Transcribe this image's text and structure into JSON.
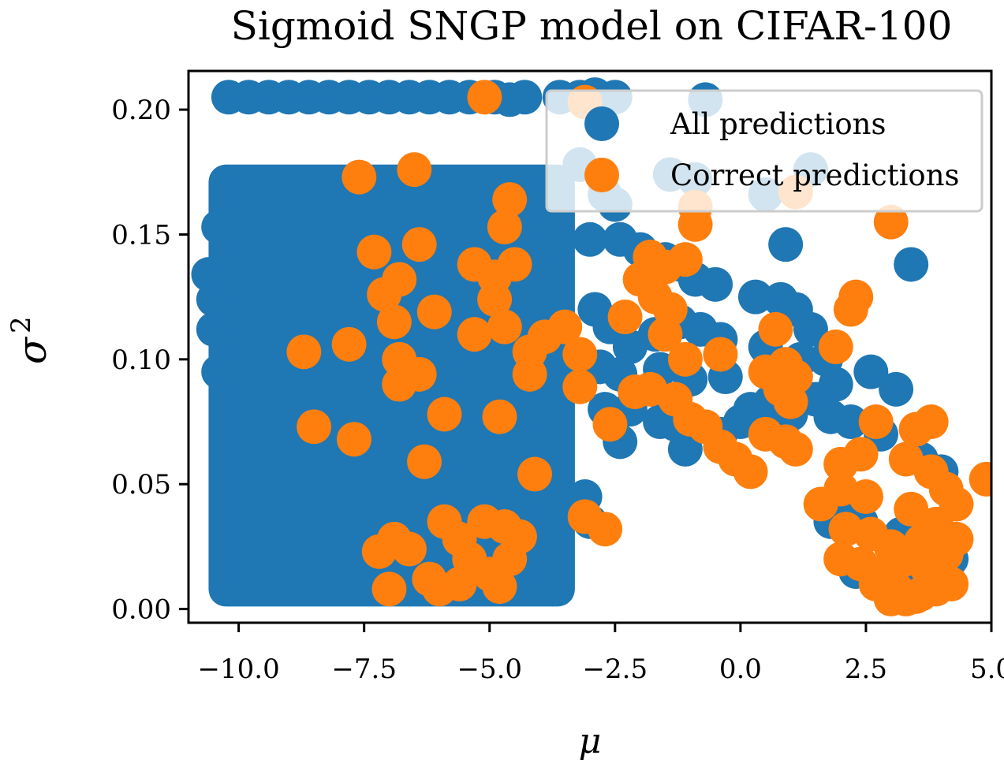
{
  "chart_data": {
    "type": "scatter",
    "title": "Sigmoid SNGP model on CIFAR-100",
    "xlabel": "μ",
    "ylabel": "σ",
    "ylabel_superscript": "2",
    "xlim": [
      -11.0,
      5.0
    ],
    "ylim": [
      -0.0055,
      0.2155
    ],
    "x_ticks": [
      -10.0,
      -7.5,
      -5.0,
      -2.5,
      0.0,
      2.5,
      5.0
    ],
    "x_tick_labels": [
      "−10.0",
      "−7.5",
      "−5.0",
      "−2.5",
      "0.0",
      "2.5",
      "5.0"
    ],
    "y_ticks": [
      0.0,
      0.05,
      0.1,
      0.15,
      0.2
    ],
    "y_tick_labels": [
      "0.00",
      "0.05",
      "0.10",
      "0.15",
      "0.20"
    ],
    "grid": false,
    "legend_position": "top-right",
    "colors": {
      "all": "#1f77b4",
      "correct": "#ff7f0e"
    },
    "series": [
      {
        "name": "All predictions",
        "dense_region": {
          "x_range": [
            -10.6,
            -3.3
          ],
          "y_range": [
            0.001,
            0.178
          ]
        },
        "points": [
          [
            -10.2,
            0.205
          ],
          [
            -9.8,
            0.205
          ],
          [
            -9.4,
            0.205
          ],
          [
            -9.0,
            0.205
          ],
          [
            -8.6,
            0.205
          ],
          [
            -8.2,
            0.205
          ],
          [
            -7.8,
            0.205
          ],
          [
            -7.4,
            0.205
          ],
          [
            -7.0,
            0.205
          ],
          [
            -6.6,
            0.205
          ],
          [
            -6.2,
            0.205
          ],
          [
            -5.8,
            0.205
          ],
          [
            -5.4,
            0.205
          ],
          [
            -4.9,
            0.205
          ],
          [
            -4.6,
            0.204
          ],
          [
            -4.3,
            0.205
          ],
          [
            -3.6,
            0.205
          ],
          [
            -3.2,
            0.205
          ],
          [
            -2.9,
            0.206
          ],
          [
            -2.5,
            0.205
          ],
          [
            -0.7,
            0.204
          ],
          [
            -10.6,
            0.134
          ],
          [
            -10.5,
            0.124
          ],
          [
            -10.4,
            0.153
          ],
          [
            -10.5,
            0.112
          ],
          [
            -10.4,
            0.095
          ],
          [
            -3.2,
            0.178
          ],
          [
            -2.7,
            0.166
          ],
          [
            -2.5,
            0.162
          ],
          [
            -3.0,
            0.148
          ],
          [
            -2.4,
            0.148
          ],
          [
            -2.0,
            0.144
          ],
          [
            -1.5,
            0.14
          ],
          [
            -1.2,
            0.138
          ],
          [
            -0.9,
            0.132
          ],
          [
            -0.5,
            0.13
          ],
          [
            -2.9,
            0.12
          ],
          [
            -2.6,
            0.113
          ],
          [
            -2.2,
            0.105
          ],
          [
            -1.7,
            0.11
          ],
          [
            -1.2,
            0.115
          ],
          [
            -0.8,
            0.112
          ],
          [
            -0.4,
            0.108
          ],
          [
            -2.8,
            0.097
          ],
          [
            -2.4,
            0.094
          ],
          [
            -1.6,
            0.096
          ],
          [
            -1.0,
            0.092
          ],
          [
            -0.3,
            0.093
          ],
          [
            -2.7,
            0.08
          ],
          [
            -2.2,
            0.08
          ],
          [
            -1.6,
            0.075
          ],
          [
            -1.3,
            0.074
          ],
          [
            -2.4,
            0.067
          ],
          [
            -0.4,
            0.07
          ],
          [
            0.0,
            0.075
          ],
          [
            -3.1,
            0.045
          ],
          [
            -3.0,
            0.035
          ],
          [
            -1.4,
            0.174
          ],
          [
            -0.9,
            0.172
          ],
          [
            0.5,
            0.166
          ],
          [
            1.4,
            0.176
          ],
          [
            0.9,
            0.146
          ],
          [
            3.4,
            0.138
          ],
          [
            0.3,
            0.125
          ],
          [
            0.8,
            0.124
          ],
          [
            1.1,
            0.12
          ],
          [
            1.4,
            0.112
          ],
          [
            0.5,
            0.105
          ],
          [
            1.2,
            0.1
          ],
          [
            1.7,
            0.1
          ],
          [
            0.6,
            0.083
          ],
          [
            1.5,
            0.084
          ],
          [
            1.9,
            0.09
          ],
          [
            2.6,
            0.095
          ],
          [
            3.1,
            0.088
          ],
          [
            0.2,
            0.08
          ],
          [
            1.0,
            0.078
          ],
          [
            1.8,
            0.077
          ],
          [
            2.2,
            0.075
          ],
          [
            2.8,
            0.07
          ],
          [
            3.6,
            0.06
          ],
          [
            4.0,
            0.055
          ],
          [
            1.9,
            0.04
          ],
          [
            2.4,
            0.035
          ],
          [
            3.2,
            0.03
          ],
          [
            1.8,
            0.035
          ],
          [
            4.2,
            0.02
          ],
          [
            2.3,
            0.015
          ],
          [
            3.5,
            0.01
          ],
          [
            -1.1,
            0.064
          ]
        ]
      },
      {
        "name": "Correct predictions",
        "points": [
          [
            -5.1,
            0.205
          ],
          [
            -3.1,
            0.203
          ],
          [
            -6.5,
            0.176
          ],
          [
            -7.6,
            0.173
          ],
          [
            -4.6,
            0.164
          ],
          [
            -4.7,
            0.153
          ],
          [
            -6.4,
            0.146
          ],
          [
            -7.3,
            0.143
          ],
          [
            -5.3,
            0.138
          ],
          [
            -4.9,
            0.133
          ],
          [
            -4.5,
            0.138
          ],
          [
            -6.8,
            0.132
          ],
          [
            -7.1,
            0.126
          ],
          [
            -4.9,
            0.124
          ],
          [
            -6.9,
            0.115
          ],
          [
            -6.1,
            0.119
          ],
          [
            -5.3,
            0.11
          ],
          [
            -4.7,
            0.113
          ],
          [
            -8.7,
            0.103
          ],
          [
            -7.8,
            0.106
          ],
          [
            -6.8,
            0.1
          ],
          [
            -6.4,
            0.094
          ],
          [
            -6.8,
            0.09
          ],
          [
            -4.2,
            0.103
          ],
          [
            -3.9,
            0.109
          ],
          [
            -3.5,
            0.113
          ],
          [
            -3.2,
            0.102
          ],
          [
            -4.2,
            0.094
          ],
          [
            -3.2,
            0.089
          ],
          [
            -8.5,
            0.073
          ],
          [
            -7.7,
            0.068
          ],
          [
            -5.9,
            0.078
          ],
          [
            -4.8,
            0.077
          ],
          [
            -6.3,
            0.059
          ],
          [
            -4.1,
            0.054
          ],
          [
            -2.6,
            0.074
          ],
          [
            -5.9,
            0.035
          ],
          [
            -5.1,
            0.035
          ],
          [
            -4.7,
            0.033
          ],
          [
            -4.4,
            0.029
          ],
          [
            -6.9,
            0.028
          ],
          [
            -5.6,
            0.028
          ],
          [
            -7.2,
            0.023
          ],
          [
            -6.6,
            0.024
          ],
          [
            -5.4,
            0.02
          ],
          [
            -4.6,
            0.02
          ],
          [
            -6.2,
            0.012
          ],
          [
            -5.6,
            0.01
          ],
          [
            -5.0,
            0.014
          ],
          [
            -4.8,
            0.009
          ],
          [
            -7.0,
            0.008
          ],
          [
            -6.0,
            0.008
          ],
          [
            -3.1,
            0.037
          ],
          [
            -2.7,
            0.032
          ],
          [
            -2.3,
            0.117
          ],
          [
            -1.8,
            0.141
          ],
          [
            -1.5,
            0.137
          ],
          [
            -1.1,
            0.14
          ],
          [
            -2.0,
            0.132
          ],
          [
            -1.7,
            0.125
          ],
          [
            -1.4,
            0.12
          ],
          [
            -1.5,
            0.11
          ],
          [
            -1.1,
            0.1
          ],
          [
            -0.4,
            0.102
          ],
          [
            -1.8,
            0.088
          ],
          [
            -1.3,
            0.084
          ],
          [
            -2.1,
            0.087
          ],
          [
            -1.0,
            0.076
          ],
          [
            -0.7,
            0.073
          ],
          [
            -0.4,
            0.065
          ],
          [
            -0.1,
            0.06
          ],
          [
            0.2,
            0.055
          ],
          [
            -0.9,
            0.154
          ],
          [
            -0.9,
            0.161
          ],
          [
            0.7,
            0.112
          ],
          [
            0.5,
            0.095
          ],
          [
            0.9,
            0.098
          ],
          [
            1.1,
            0.093
          ],
          [
            0.8,
            0.088
          ],
          [
            1.0,
            0.083
          ],
          [
            0.5,
            0.07
          ],
          [
            0.9,
            0.067
          ],
          [
            1.1,
            0.064
          ],
          [
            1.9,
            0.105
          ],
          [
            2.2,
            0.12
          ],
          [
            2.3,
            0.125
          ],
          [
            3.0,
            0.155
          ],
          [
            1.1,
            0.167
          ],
          [
            2.7,
            0.075
          ],
          [
            3.5,
            0.072
          ],
          [
            3.8,
            0.075
          ],
          [
            3.3,
            0.06
          ],
          [
            2.4,
            0.062
          ],
          [
            2.0,
            0.058
          ],
          [
            3.8,
            0.055
          ],
          [
            4.1,
            0.048
          ],
          [
            4.3,
            0.042
          ],
          [
            4.9,
            0.052
          ],
          [
            1.6,
            0.042
          ],
          [
            2.0,
            0.048
          ],
          [
            2.5,
            0.045
          ],
          [
            3.4,
            0.04
          ],
          [
            3.9,
            0.034
          ],
          [
            4.3,
            0.028
          ],
          [
            2.1,
            0.032
          ],
          [
            2.6,
            0.03
          ],
          [
            3.0,
            0.025
          ],
          [
            3.6,
            0.027
          ],
          [
            4.1,
            0.022
          ],
          [
            2.0,
            0.02
          ],
          [
            2.4,
            0.018
          ],
          [
            2.9,
            0.015
          ],
          [
            3.3,
            0.02
          ],
          [
            3.7,
            0.017
          ],
          [
            4.0,
            0.012
          ],
          [
            2.7,
            0.01
          ],
          [
            3.1,
            0.008
          ],
          [
            3.5,
            0.005
          ],
          [
            3.9,
            0.008
          ],
          [
            4.2,
            0.01
          ],
          [
            3.0,
            0.004
          ],
          [
            3.3,
            0.004
          ],
          [
            3.6,
            0.006
          ]
        ]
      }
    ]
  }
}
